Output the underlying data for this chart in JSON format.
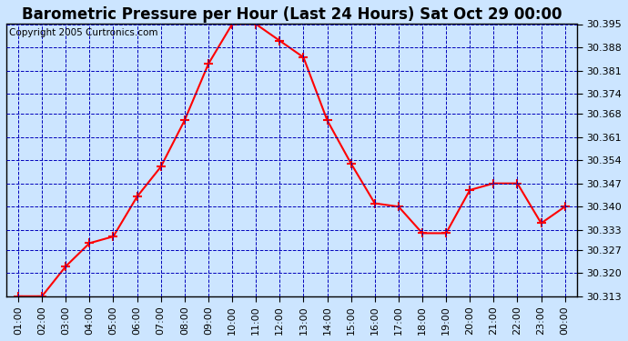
{
  "title": "Barometric Pressure per Hour (Last 24 Hours) Sat Oct 29 00:00",
  "copyright": "Copyright 2005 Curtronics.com",
  "x_labels": [
    "01:00",
    "02:00",
    "03:00",
    "04:00",
    "05:00",
    "06:00",
    "07:00",
    "08:00",
    "09:00",
    "10:00",
    "11:00",
    "12:00",
    "13:00",
    "14:00",
    "15:00",
    "16:00",
    "17:00",
    "18:00",
    "19:00",
    "20:00",
    "21:00",
    "22:00",
    "23:00",
    "00:00"
  ],
  "y_values": [
    30.313,
    30.313,
    30.322,
    30.329,
    30.331,
    30.343,
    30.352,
    30.366,
    30.383,
    30.395,
    30.395,
    30.39,
    30.385,
    30.366,
    30.353,
    30.341,
    30.34,
    30.332,
    30.332,
    30.345,
    30.347,
    30.347,
    30.335,
    30.34
  ],
  "ylim_min": 30.313,
  "ylim_max": 30.395,
  "yticks": [
    30.313,
    30.32,
    30.327,
    30.333,
    30.34,
    30.347,
    30.354,
    30.361,
    30.368,
    30.374,
    30.381,
    30.388,
    30.395
  ],
  "line_color": "red",
  "marker": "+",
  "marker_size": 7,
  "marker_color": "red",
  "marker_linewidth": 1.5,
  "grid_color": "#0000bb",
  "grid_style": "--",
  "background_color": "#cce5ff",
  "plot_bg_color": "#cce5ff",
  "title_fontsize": 12,
  "copyright_fontsize": 7.5,
  "tick_fontsize": 8,
  "title_color": "black"
}
